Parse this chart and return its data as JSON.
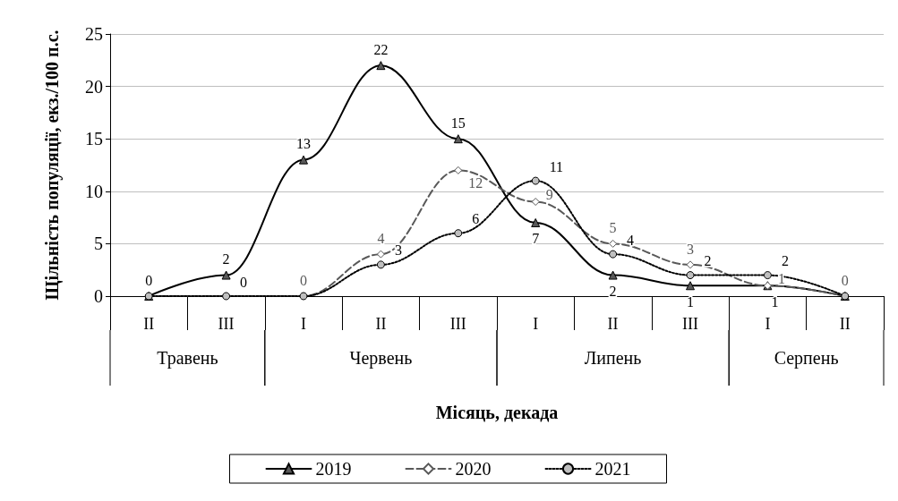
{
  "chart_data": {
    "type": "line",
    "xlabel": "Місяць, декада",
    "ylabel": "Щільність популяції, екз./100 п.с.",
    "categories": [
      "II",
      "III",
      "I",
      "II",
      "III",
      "I",
      "II",
      "III",
      "I",
      "II"
    ],
    "annotations": [
      "Травень",
      "Червень",
      "Липень",
      "Серпень"
    ],
    "series": [
      {
        "name": "2019",
        "color": "#000000",
        "marker": "triangle",
        "line_style": "solid",
        "values": [
          0,
          2,
          13,
          22,
          15,
          7,
          2,
          1,
          1,
          0
        ],
        "value_labels": [
          "0",
          "2",
          "13",
          "22",
          "15",
          "7",
          "2",
          "1",
          "1",
          null
        ]
      },
      {
        "name": "2020",
        "color": "#595959",
        "marker": "diamond",
        "line_style": "dashed",
        "values": [
          0,
          0,
          0,
          4,
          12,
          9,
          5,
          3,
          1,
          0
        ],
        "value_labels": [
          null,
          null,
          "0",
          "4",
          "12",
          "9",
          "5",
          "3",
          "1",
          "0"
        ]
      },
      {
        "name": "2021",
        "color": "#000000",
        "marker": "circle",
        "line_style": "dotted",
        "values": [
          0,
          0,
          0,
          3,
          6,
          11,
          4,
          2,
          2,
          0
        ],
        "value_labels": [
          null,
          "0",
          null,
          "3",
          "6",
          "11",
          "4",
          "2",
          "2",
          null
        ]
      }
    ],
    "ylim": [
      0,
      25
    ],
    "yticks": [
      0,
      5,
      10,
      15,
      20,
      25
    ],
    "grid": "y",
    "legend": "bottom"
  }
}
